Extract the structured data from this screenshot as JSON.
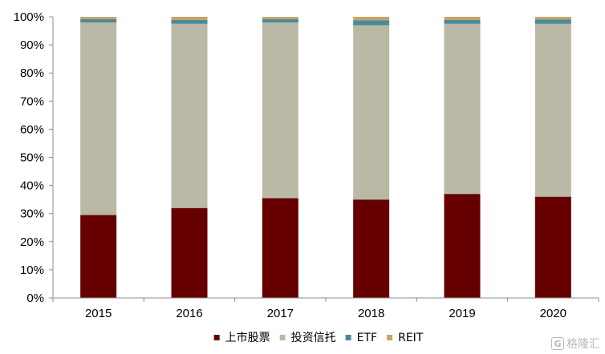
{
  "chart_data": {
    "type": "bar",
    "stacked": true,
    "percent_axis": true,
    "categories": [
      "2015",
      "2016",
      "2017",
      "2018",
      "2019",
      "2020"
    ],
    "series": [
      {
        "name": "上市股票",
        "color": "#660000",
        "values": [
          29.5,
          32,
          35.5,
          35,
          37,
          36
        ]
      },
      {
        "name": "投资信托",
        "color": "#b9b9a5",
        "values": [
          68.5,
          65.5,
          62.5,
          62,
          60.5,
          61.5
        ]
      },
      {
        "name": "ETF",
        "color": "#4a8a99",
        "values": [
          1.2,
          1.4,
          1.2,
          1.8,
          1.4,
          1.6
        ]
      },
      {
        "name": "REIT",
        "color": "#c6a366",
        "values": [
          0.8,
          1.1,
          0.8,
          1.2,
          1.1,
          0.9
        ]
      }
    ],
    "ylim": [
      0,
      100
    ],
    "yticks": [
      "0%",
      "10%",
      "20%",
      "30%",
      "40%",
      "50%",
      "60%",
      "70%",
      "80%",
      "90%",
      "100%"
    ],
    "title": "",
    "xlabel": "",
    "ylabel": "",
    "grid": false,
    "legend_position": "bottom"
  },
  "watermark": {
    "logo_glyph": "G",
    "text": "格隆汇"
  }
}
